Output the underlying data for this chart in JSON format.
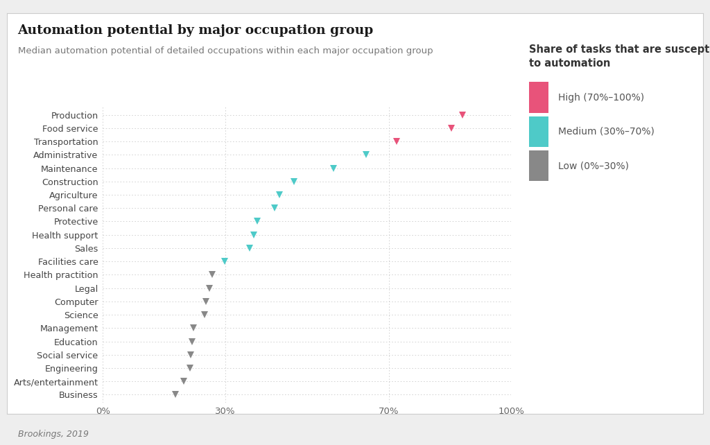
{
  "title": "Automation potential by major occupation group",
  "subtitle": "Median automation potential of detailed occupations within each major occupation group",
  "source": "Brookings, 2019",
  "legend_title": "Share of tasks that are susceptible\nto automation",
  "legend_labels": [
    "High (70%–100%)",
    "Medium (30%–70%)",
    "Low (0%–30%)"
  ],
  "legend_colors": [
    "#e8537a",
    "#4ecac8",
    "#888888"
  ],
  "categories": [
    "Production",
    "Food service",
    "Transportation",
    "Administrative",
    "Maintenance",
    "Construction",
    "Agriculture",
    "Personal care",
    "Protective",
    "Health support",
    "Sales",
    "Facilities care",
    "Health practition",
    "Legal",
    "Computer",
    "Science",
    "Management",
    "Education",
    "Social service",
    "Engineering",
    "Arts/entertainment",
    "Business"
  ],
  "values": [
    0.88,
    0.854,
    0.72,
    0.645,
    0.565,
    0.468,
    0.432,
    0.42,
    0.378,
    0.37,
    0.36,
    0.298,
    0.268,
    0.26,
    0.252,
    0.248,
    0.222,
    0.218,
    0.215,
    0.213,
    0.198,
    0.178
  ],
  "colors": [
    "#e8537a",
    "#e8537a",
    "#e8537a",
    "#4ecac8",
    "#4ecac8",
    "#4ecac8",
    "#4ecac8",
    "#4ecac8",
    "#4ecac8",
    "#4ecac8",
    "#4ecac8",
    "#4ecac8",
    "#888888",
    "#888888",
    "#888888",
    "#888888",
    "#888888",
    "#888888",
    "#888888",
    "#888888",
    "#888888",
    "#888888"
  ],
  "outer_bg": "#eeeeee",
  "card_bg": "#ffffff",
  "plot_bg": "#ffffff",
  "xlim": [
    0,
    1.0
  ],
  "xticks": [
    0,
    0.3,
    0.7,
    1.0
  ],
  "xticklabels": [
    "0%",
    "30%",
    "70%",
    "100%"
  ]
}
